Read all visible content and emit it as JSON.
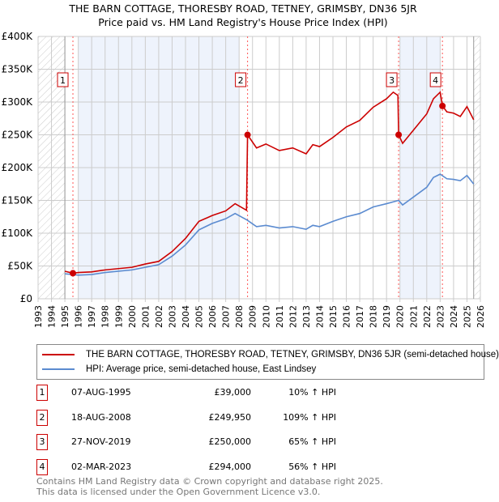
{
  "title": "THE BARN COTTAGE, THORESBY ROAD, TETNEY, GRIMSBY, DN36 5JR",
  "subtitle": "Price paid vs. HM Land Registry's House Price Index (HPI)",
  "chart_data": {
    "type": "line",
    "xlim": [
      1993,
      2026
    ],
    "ylim": [
      0,
      400000
    ],
    "x_ticks": [
      "1993",
      "1994",
      "1995",
      "1996",
      "1997",
      "1998",
      "1999",
      "2000",
      "2001",
      "2002",
      "2003",
      "2004",
      "2005",
      "2006",
      "2007",
      "2008",
      "2009",
      "2010",
      "2011",
      "2012",
      "2013",
      "2014",
      "2015",
      "2016",
      "2017",
      "2018",
      "2019",
      "2020",
      "2021",
      "2022",
      "2023",
      "2024",
      "2025",
      "2026"
    ],
    "y_ticks": [
      {
        "v": 0,
        "label": "£0"
      },
      {
        "v": 50000,
        "label": "£50K"
      },
      {
        "v": 100000,
        "label": "£100K"
      },
      {
        "v": 150000,
        "label": "£150K"
      },
      {
        "v": 200000,
        "label": "£200K"
      },
      {
        "v": 250000,
        "label": "£250K"
      },
      {
        "v": 300000,
        "label": "£300K"
      },
      {
        "v": 350000,
        "label": "£350K"
      },
      {
        "v": 400000,
        "label": "£400K"
      }
    ],
    "shaded_periods": [
      [
        1996,
        2008
      ],
      [
        2020,
        2023
      ]
    ],
    "hatched_periods": [
      [
        1993,
        1995
      ],
      [
        2025.5,
        2026
      ]
    ],
    "series": [
      {
        "name": "THE BARN COTTAGE, THORESBY ROAD, TETNEY, GRIMSBY, DN36 5JR (semi-detached house)",
        "color": "#cc0000",
        "x": [
          1995,
          1995.6,
          1996,
          1997,
          1998,
          1999,
          2000,
          2001,
          2002,
          2003,
          2004,
          2005,
          2006,
          2007,
          2007.7,
          2008.55,
          2008.63,
          2009.3,
          2010,
          2011,
          2012,
          2013,
          2013.5,
          2014,
          2015,
          2016,
          2017,
          2018,
          2019,
          2019.5,
          2019.85,
          2019.9,
          2020.2,
          2021,
          2022,
          2022.5,
          2023,
          2023.17,
          2023.5,
          2024,
          2024.5,
          2025,
          2025.5
        ],
        "y": [
          42000,
          39000,
          40000,
          41000,
          44000,
          46000,
          48000,
          53000,
          57000,
          72000,
          92000,
          118000,
          127000,
          134000,
          145000,
          135000,
          249950,
          230000,
          236000,
          226000,
          230000,
          221000,
          235000,
          232000,
          246000,
          262000,
          272000,
          292000,
          305000,
          315000,
          310000,
          250000,
          237000,
          257000,
          282000,
          305000,
          315000,
          294000,
          285000,
          283000,
          278000,
          293000,
          273000
        ]
      },
      {
        "name": "HPI: Average price, semi-detached house, East Lindsey",
        "color": "#5b8bd0",
        "x": [
          1995,
          1995.6,
          1996,
          1997,
          1998,
          1999,
          2000,
          2001,
          2002,
          2003,
          2004,
          2005,
          2006,
          2007,
          2007.7,
          2008.6,
          2009.3,
          2010,
          2011,
          2012,
          2013,
          2013.5,
          2014,
          2015,
          2016,
          2017,
          2018,
          2019,
          2019.9,
          2020.2,
          2021,
          2022,
          2022.5,
          2023,
          2023.5,
          2024,
          2024.5,
          2025,
          2025.5
        ],
        "y": [
          38000,
          37000,
          36000,
          37000,
          40000,
          42000,
          44000,
          48000,
          52000,
          65000,
          82000,
          105000,
          115000,
          122000,
          130000,
          120000,
          110000,
          112000,
          108000,
          110000,
          106000,
          112000,
          110000,
          118000,
          125000,
          130000,
          140000,
          145000,
          150000,
          143000,
          155000,
          170000,
          185000,
          190000,
          183000,
          182000,
          180000,
          188000,
          175000
        ]
      }
    ],
    "sales": [
      {
        "label": "1",
        "x": 1995.6,
        "y": 39000
      },
      {
        "label": "2",
        "x": 2008.63,
        "y": 249950
      },
      {
        "label": "3",
        "x": 2019.9,
        "y": 250000
      },
      {
        "label": "4",
        "x": 2023.17,
        "y": 294000
      }
    ]
  },
  "legend": {
    "property": "THE BARN COTTAGE, THORESBY ROAD, TETNEY, GRIMSBY, DN36 5JR (semi-detached house)",
    "hpi": "HPI: Average price, semi-detached house, East Lindsey"
  },
  "transactions": [
    {
      "num": "1",
      "date": "07-AUG-1995",
      "price": "£39,000",
      "hpi": "10% ↑ HPI"
    },
    {
      "num": "2",
      "date": "18-AUG-2008",
      "price": "£249,950",
      "hpi": "109% ↑ HPI"
    },
    {
      "num": "3",
      "date": "27-NOV-2019",
      "price": "£250,000",
      "hpi": "65% ↑ HPI"
    },
    {
      "num": "4",
      "date": "02-MAR-2023",
      "price": "£294,000",
      "hpi": "56% ↑ HPI"
    }
  ],
  "footer": {
    "line1": "Contains HM Land Registry data © Crown copyright and database right 2025.",
    "line2": "This data is licensed under the Open Government Licence v3.0."
  }
}
